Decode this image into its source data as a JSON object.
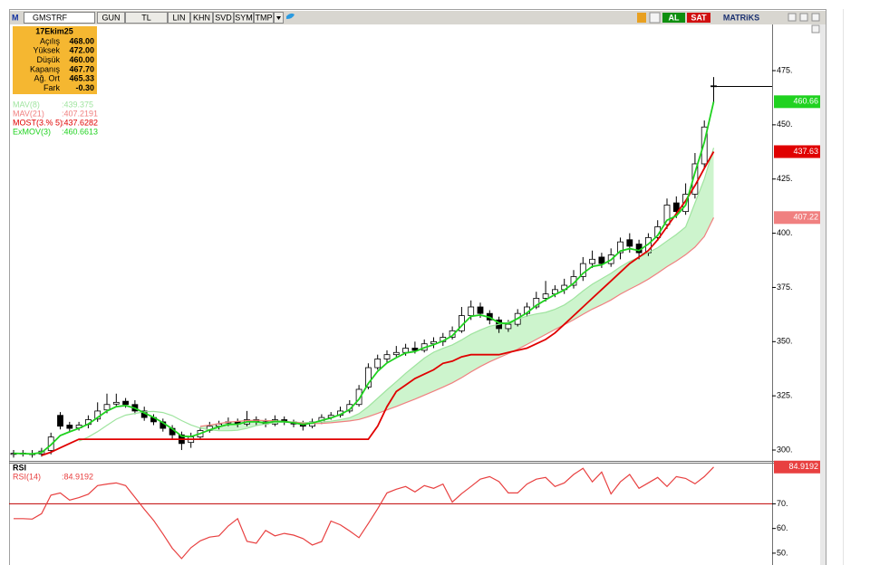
{
  "toolbar": {
    "logo": "M",
    "symbol": "GMSTRF",
    "buttons": [
      "GUN",
      "TL",
      "LIN",
      "KHN",
      "SVD",
      "SYM",
      "TMP"
    ],
    "buy": "AL",
    "sell": "SAT",
    "brand": "MATRiKS"
  },
  "info_box": {
    "date": "17Ekim25",
    "rows": [
      {
        "label": "Açılış",
        "value": "468.00"
      },
      {
        "label": "Yüksek",
        "value": "472.00"
      },
      {
        "label": "Düşük",
        "value": "460.00"
      },
      {
        "label": "Kapanış",
        "value": "467.70"
      },
      {
        "label": "Ağ. Ort",
        "value": "465.33"
      },
      {
        "label": "Fark",
        "value": "-0.30"
      }
    ]
  },
  "chart_data": [
    {
      "type": "candlestick",
      "open": [
        298,
        298.6,
        298.3,
        298.2,
        299.8,
        316,
        311.5,
        310.2,
        311.8,
        314.3,
        318.5,
        321.2,
        322.5,
        321,
        318,
        315,
        313,
        310,
        307,
        303.5,
        306,
        309,
        311,
        312.5,
        313,
        312,
        314,
        313,
        312,
        314,
        313,
        312,
        311,
        313,
        315,
        316,
        318,
        321,
        329,
        338,
        342,
        344,
        345,
        347,
        346,
        349,
        350,
        352,
        355,
        362,
        366,
        363,
        360,
        356,
        358,
        363,
        366,
        370,
        372,
        374,
        376,
        380,
        386,
        389,
        386,
        391,
        397,
        395,
        391,
        398,
        404,
        414,
        410,
        418,
        432,
        468
      ],
      "high": [
        300,
        300,
        300,
        301,
        308,
        317.5,
        313,
        313,
        316,
        322,
        326,
        326,
        324,
        323,
        320,
        316.5,
        314.5,
        311.5,
        308.5,
        308,
        310.5,
        313,
        313.5,
        315,
        314.5,
        318,
        315.5,
        314.5,
        316,
        315.5,
        314,
        313.5,
        314.5,
        316.5,
        317.5,
        320,
        323,
        330,
        340,
        344,
        346,
        348,
        349,
        350,
        351,
        352,
        354,
        357,
        366,
        369,
        368,
        364.5,
        361.5,
        360,
        365,
        368,
        373,
        378,
        376,
        379,
        383,
        389,
        392,
        391,
        393,
        398,
        400,
        397,
        400,
        406,
        416,
        417,
        423,
        437,
        452,
        472
      ],
      "low": [
        296.5,
        297,
        296.5,
        297,
        298,
        309.5,
        308.5,
        309,
        310,
        313,
        317,
        320,
        319.5,
        316.5,
        313.5,
        311.5,
        308.5,
        305,
        300,
        301,
        305,
        308,
        309.5,
        311,
        310.5,
        311,
        311.5,
        310.5,
        311,
        311.5,
        310.5,
        309,
        310,
        312,
        314,
        315,
        317,
        320,
        328,
        337,
        340.5,
        343,
        343.5,
        344.5,
        345,
        347,
        348,
        351,
        354,
        360,
        361,
        358,
        354,
        354.5,
        357,
        361.5,
        365,
        368.5,
        370.5,
        372,
        374.5,
        378,
        384,
        384,
        384.5,
        388,
        391,
        388,
        389.5,
        396.5,
        402,
        407,
        408.5,
        416,
        430,
        460
      ],
      "close": [
        298.5,
        298.2,
        298,
        299.5,
        306,
        311,
        310,
        311.5,
        314,
        318,
        321,
        322,
        321,
        318,
        315,
        313,
        310,
        307,
        303,
        306,
        309,
        311,
        312,
        313,
        312,
        314,
        313,
        312,
        314,
        313,
        312,
        311,
        313,
        315,
        316,
        318,
        321,
        328,
        338,
        342,
        344,
        345,
        347,
        346,
        349,
        350,
        352,
        355,
        362,
        366,
        363,
        360,
        356,
        358,
        363,
        366,
        370,
        372,
        374,
        376,
        380,
        386,
        388,
        386,
        390,
        396,
        394,
        391,
        398,
        403,
        413,
        410,
        418,
        432,
        449,
        467.7
      ],
      "up_color": "#ffffff",
      "down_color": "#000000",
      "band_color": "#c4f2c4",
      "ylim": [
        295,
        496.3
      ],
      "yticks": [
        {
          "value": 475,
          "label": "475."
        },
        {
          "value": 450,
          "label": "450."
        },
        {
          "value": 425,
          "label": "425."
        },
        {
          "value": 400,
          "label": "400."
        },
        {
          "value": 375,
          "label": "375."
        },
        {
          "value": 350,
          "label": "350."
        },
        {
          "value": 325,
          "label": "325."
        },
        {
          "value": 300,
          "label": "300."
        }
      ],
      "series": [
        {
          "name": "MAV(8)",
          "color": "#9fe49f",
          "legend_value": ":439.375",
          "values": [
            null,
            null,
            null,
            null,
            null,
            null,
            null,
            304.1,
            306,
            308.5,
            311.4,
            314.2,
            316.1,
            316.9,
            317.6,
            317.8,
            317.3,
            315.9,
            313.6,
            311.6,
            310.1,
            309.3,
            308.9,
            308.9,
            309.1,
            310,
            311.3,
            312,
            312.6,
            312.9,
            312.9,
            312.6,
            312.8,
            312.9,
            313.3,
            314,
            314.9,
            316.8,
            320,
            323.9,
            327.8,
            331.5,
            335.4,
            338.9,
            342.4,
            345.1,
            346.9,
            348.5,
            350.8,
            353.4,
            355.4,
            357.1,
            358,
            359,
            360.4,
            361.8,
            362.8,
            363.5,
            364.9,
            366.9,
            369.9,
            373.4,
            376.5,
            379,
            381.5,
            384.5,
            387,
            388.9,
            391.1,
            393.3,
            396.4,
            399.4,
            402.9,
            414,
            425,
            439.375
          ]
        },
        {
          "name": "MAV(21)",
          "color": "#f08080",
          "legend_value": ":407.2191",
          "axis_label": "407.22",
          "values": [
            null,
            null,
            null,
            null,
            null,
            null,
            null,
            null,
            null,
            null,
            null,
            null,
            null,
            null,
            null,
            null,
            null,
            null,
            null,
            null,
            310.9,
            311.5,
            312.2,
            312.9,
            313.2,
            313.6,
            313.7,
            313.6,
            313.5,
            313.2,
            312.8,
            312.4,
            312.2,
            312.3,
            312.6,
            313,
            313.4,
            314.1,
            315.4,
            316.9,
            318.5,
            320.1,
            321.8,
            323.5,
            325.3,
            327.1,
            329,
            331,
            333.4,
            336,
            338.5,
            340.7,
            342.6,
            344.5,
            346.5,
            348.7,
            351,
            353.3,
            355.6,
            357.8,
            360.1,
            362.6,
            365,
            367,
            369.2,
            371.9,
            374.2,
            376.4,
            378.8,
            381.6,
            384.6,
            387.2,
            390.1,
            393.6,
            398.5,
            407.2191
          ]
        },
        {
          "name": "MOST(3.% 5)",
          "color": "#e00000",
          "legend_value": ":437.6282",
          "axis_label": "437.63",
          "values": [
            null,
            null,
            null,
            297.5,
            299,
            301,
            303,
            305,
            305,
            305,
            305,
            305,
            305,
            305,
            305,
            305,
            305,
            305,
            305,
            305,
            305,
            305,
            305,
            305,
            305,
            305,
            305,
            305,
            305,
            305,
            305,
            305,
            305,
            305,
            305,
            305,
            305,
            305,
            305,
            311,
            320,
            327,
            330,
            333,
            335,
            337,
            340,
            341,
            343,
            344,
            344,
            344,
            344,
            345,
            346,
            347,
            349,
            351,
            354,
            358,
            362,
            366,
            370,
            374,
            378,
            382,
            386,
            389,
            392,
            397,
            403,
            409,
            415,
            422,
            430,
            437.6282
          ]
        },
        {
          "name": "ExMOV(3)",
          "color": "#1fd21f",
          "legend_value": ":460.6613",
          "axis_label": "460.66",
          "values": [
            298.5,
            298.35,
            298.2,
            298.85,
            302.4,
            306.7,
            308.4,
            310,
            312,
            315,
            318,
            320,
            320.5,
            319.3,
            317.1,
            315.1,
            312.6,
            309.8,
            306.4,
            306.2,
            307.6,
            309.3,
            310.7,
            311.8,
            311.9,
            313,
            313,
            312.5,
            313.2,
            313.1,
            312.6,
            311.8,
            312.4,
            313.7,
            314.8,
            316.4,
            318.7,
            323.4,
            330.7,
            336.3,
            340.2,
            342.6,
            344.8,
            345.4,
            347.2,
            348.6,
            350.3,
            352.7,
            357.3,
            361.7,
            362.3,
            361.2,
            358.6,
            358.3,
            360.7,
            363.3,
            366.7,
            369.3,
            371.7,
            373.8,
            376.9,
            381.5,
            384.7,
            385.4,
            387.7,
            391.8,
            392.9,
            392,
            395,
            399,
            406,
            408,
            413,
            428,
            442,
            460.6613
          ]
        }
      ]
    },
    {
      "type": "line",
      "title": "RSI",
      "ylim": [
        45.2,
        86.3
      ],
      "yticks": [
        {
          "value": 70,
          "label": "70."
        },
        {
          "value": 60,
          "label": "60."
        },
        {
          "value": 50,
          "label": "50."
        }
      ],
      "reference_line": 70,
      "reference_color": "#c00000",
      "series": [
        {
          "name": "RSI(14)",
          "color": "#e84040",
          "legend_value": ":84.9192",
          "axis_label": "84.9192",
          "values": [
            64,
            64,
            63.8,
            66,
            73.5,
            74.4,
            71.5,
            72.5,
            73.9,
            77.4,
            78,
            78.5,
            77.4,
            72.6,
            67.8,
            63.3,
            57.8,
            52,
            47.8,
            52.2,
            55,
            56.5,
            57,
            61,
            64,
            54.8,
            54,
            59.2,
            57,
            58,
            57.3,
            55.9,
            53.3,
            54.7,
            63,
            61.5,
            59,
            56.3,
            62,
            68,
            74.4,
            75.9,
            77,
            74.8,
            77.4,
            76.3,
            78,
            70.7,
            74.1,
            77,
            80,
            81,
            79,
            74.4,
            74.4,
            78,
            80,
            80.7,
            77,
            78.5,
            81.9,
            84.4,
            78.9,
            82.9,
            74,
            78.9,
            81.9,
            76.3,
            78.5,
            80.7,
            77,
            81,
            80.3,
            78.1,
            81,
            84.9192
          ]
        }
      ]
    }
  ]
}
